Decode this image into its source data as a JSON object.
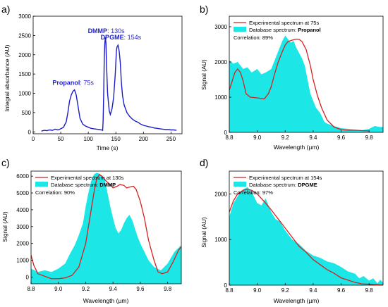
{
  "colors": {
    "panel_a_line": "#1c1cc8",
    "peak_label": "#1f1fd0",
    "experimental": "#d81f1f",
    "database_fill": "#1ce6e6",
    "axis": "#000000"
  },
  "chart_data": [
    {
      "panel_label": "a)",
      "type": "line",
      "title": "",
      "xlabel": "Time (s)",
      "ylabel": "Integral absorbance (AU)",
      "xlim": [
        0,
        270
      ],
      "ylim": [
        -50,
        3000
      ],
      "xticks": [
        "0",
        "50",
        "100",
        "150",
        "200",
        "250"
      ],
      "yticks": [
        "0",
        "500",
        "1000",
        "1500",
        "2000",
        "2500",
        "3000"
      ],
      "series": [
        {
          "x": [
            15,
            20,
            25,
            30,
            35,
            40,
            45,
            50,
            55,
            60,
            63,
            66,
            69,
            72,
            75,
            78,
            81,
            85,
            90,
            95,
            100,
            105,
            110,
            115,
            120,
            124,
            126,
            127,
            128,
            129,
            130,
            131,
            132,
            133,
            135,
            138,
            140,
            143,
            146,
            149,
            151,
            152,
            154,
            156,
            158,
            160,
            162,
            165,
            170,
            175,
            180,
            185,
            190,
            195,
            200,
            205,
            210,
            215,
            220,
            225,
            230,
            235,
            240,
            245,
            250,
            255,
            260
          ],
          "y": [
            20,
            40,
            30,
            50,
            40,
            70,
            50,
            80,
            120,
            260,
            500,
            800,
            950,
            1050,
            1090,
            960,
            700,
            350,
            200,
            150,
            120,
            90,
            80,
            70,
            60,
            50,
            40,
            300,
            1000,
            1900,
            2300,
            2450,
            2300,
            1800,
            1000,
            550,
            450,
            600,
            900,
            1500,
            2100,
            2200,
            2250,
            2100,
            1800,
            1300,
            950,
            700,
            500,
            400,
            330,
            280,
            250,
            200,
            170,
            150,
            130,
            120,
            100,
            90,
            80,
            70,
            60,
            60,
            50,
            50,
            40
          ]
        }
      ],
      "annotations": [
        {
          "name": "Propanol",
          "time_label": ": 75s",
          "x": 75,
          "y": 1090
        },
        {
          "name": "DMMP",
          "time_label": ": 130s",
          "x": 130,
          "y": 2450
        },
        {
          "name": "DPGME",
          "time_label": ": 154s",
          "x": 154,
          "y": 2250
        }
      ]
    },
    {
      "panel_label": "b)",
      "type": "area",
      "title": "",
      "xlabel": "Wavelength (µm)",
      "ylabel": "Signal (AU)",
      "xlim": [
        8.8,
        9.9
      ],
      "ylim": [
        0,
        3300
      ],
      "xticks": [
        "8.8",
        "9.0",
        "9.2",
        "9.4",
        "9.6",
        "9.8"
      ],
      "yticks": [
        "0",
        "1000",
        "2000",
        "3000"
      ],
      "legend_placement": "top-left",
      "legend": {
        "experimental": "Experimental spectrum at 75s",
        "database_prefix": "Database spectrum: ",
        "database_name": "Propanol"
      },
      "correlation": "Correlation: 89%",
      "series": [
        {
          "name": "Experimental spectrum at 75s",
          "x": [
            8.8,
            8.82,
            8.84,
            8.86,
            8.88,
            8.9,
            8.92,
            8.95,
            9.0,
            9.05,
            9.08,
            9.1,
            9.12,
            9.15,
            9.18,
            9.2,
            9.22,
            9.25,
            9.28,
            9.3,
            9.32,
            9.35,
            9.38,
            9.4,
            9.43,
            9.46,
            9.5,
            9.55,
            9.6,
            9.65,
            9.7,
            9.75,
            9.8
          ],
          "y": [
            1200,
            1450,
            1700,
            1800,
            1700,
            1450,
            1100,
            1000,
            980,
            950,
            1100,
            1300,
            1600,
            2000,
            2300,
            2480,
            2580,
            2620,
            2650,
            2640,
            2580,
            2350,
            1900,
            1500,
            1050,
            700,
            350,
            150,
            80,
            60,
            60,
            50,
            40
          ]
        },
        {
          "name": "Database spectrum: Propanol",
          "x": [
            8.8,
            8.83,
            8.86,
            8.9,
            8.93,
            8.96,
            9.0,
            9.03,
            9.06,
            9.1,
            9.13,
            9.16,
            9.18,
            9.2,
            9.22,
            9.24,
            9.26,
            9.28,
            9.3,
            9.32,
            9.34,
            9.36,
            9.38,
            9.4,
            9.42,
            9.45,
            9.48,
            9.5,
            9.55,
            9.6,
            9.65,
            9.7,
            9.75,
            9.8,
            9.84,
            9.88,
            9.9
          ],
          "y": [
            2050,
            1950,
            2000,
            1800,
            1850,
            1700,
            1800,
            1650,
            1700,
            1800,
            2100,
            2400,
            2600,
            2750,
            2650,
            2550,
            2600,
            2400,
            2250,
            2100,
            1900,
            1500,
            1100,
            900,
            700,
            550,
            300,
            250,
            180,
            120,
            100,
            80,
            60,
            100,
            180,
            150,
            160
          ]
        }
      ]
    },
    {
      "panel_label": "c)",
      "type": "area",
      "title": "",
      "xlabel": "Wavelength (µm)",
      "ylabel": "Signal (AU)",
      "xlim": [
        8.8,
        9.9
      ],
      "ylim": [
        -400,
        6300
      ],
      "xticks": [
        "8.8",
        "9.0",
        "9.2",
        "9.4",
        "9.6",
        "9.8"
      ],
      "yticks": [
        "0",
        "1000",
        "2000",
        "3000",
        "4000",
        "5000",
        "6000"
      ],
      "legend_placement": "top-left",
      "legend": {
        "experimental": "Experimental spectrum at 130s",
        "database_prefix": "Database spectrum: ",
        "database_name": "DMMP"
      },
      "correlation": "Correlation: 90%",
      "series": [
        {
          "name": "Experimental spectrum at 130s",
          "x": [
            8.8,
            8.82,
            8.85,
            8.9,
            8.95,
            9.0,
            9.05,
            9.1,
            9.15,
            9.2,
            9.23,
            9.26,
            9.28,
            9.3,
            9.32,
            9.35,
            9.38,
            9.4,
            9.43,
            9.45,
            9.48,
            9.5,
            9.52,
            9.55,
            9.57,
            9.6,
            9.63,
            9.66,
            9.7,
            9.73,
            9.76,
            9.8,
            9.84,
            9.88,
            9.9
          ],
          "y": [
            1300,
            700,
            200,
            50,
            -100,
            -100,
            -50,
            100,
            600,
            2000,
            3500,
            5000,
            5800,
            6100,
            6000,
            5700,
            5500,
            5300,
            5400,
            5500,
            5450,
            5300,
            5350,
            5400,
            5200,
            4500,
            3500,
            2200,
            1000,
            300,
            200,
            300,
            900,
            1600,
            1800
          ]
        },
        {
          "name": "Database spectrum: DMMP",
          "x": [
            8.8,
            8.85,
            8.9,
            8.95,
            9.0,
            9.05,
            9.08,
            9.12,
            9.15,
            9.18,
            9.2,
            9.22,
            9.24,
            9.26,
            9.28,
            9.3,
            9.32,
            9.34,
            9.36,
            9.38,
            9.4,
            9.42,
            9.44,
            9.46,
            9.48,
            9.5,
            9.52,
            9.54,
            9.56,
            9.58,
            9.6,
            9.63,
            9.66,
            9.7,
            9.75,
            9.8,
            9.85,
            9.9
          ],
          "y": [
            500,
            300,
            400,
            300,
            500,
            800,
            1300,
            1900,
            2500,
            3200,
            4200,
            5000,
            5700,
            6100,
            6200,
            6150,
            6000,
            5800,
            5000,
            4200,
            3500,
            2900,
            2600,
            2800,
            3200,
            3500,
            3700,
            3400,
            2900,
            2400,
            2000,
            1500,
            1000,
            600,
            400,
            800,
            1500,
            1900
          ]
        }
      ]
    },
    {
      "panel_label": "d)",
      "type": "area",
      "title": "",
      "xlabel": "Wavelength (µm)",
      "ylabel": "Signal (AU)",
      "xlim": [
        8.8,
        9.9
      ],
      "ylim": [
        0,
        2500
      ],
      "xticks": [
        "8.8",
        "9.0",
        "9.2",
        "9.4",
        "9.6",
        "9.8"
      ],
      "yticks": [
        "0",
        "1000",
        "2000"
      ],
      "legend_placement": "top-left",
      "legend": {
        "experimental": "Experimental spectrum at 154s",
        "database_prefix": "Database spectrum: ",
        "database_name": "DPGME"
      },
      "correlation": "Correlation: 97%",
      "series": [
        {
          "name": "Experimental spectrum at 154s",
          "x": [
            8.8,
            8.83,
            8.86,
            8.9,
            8.93,
            8.96,
            9.0,
            9.03,
            9.06,
            9.1,
            9.15,
            9.2,
            9.25,
            9.3,
            9.35,
            9.4,
            9.45,
            9.5,
            9.55,
            9.6,
            9.65,
            9.7,
            9.75,
            9.8,
            9.85,
            9.9
          ],
          "y": [
            1600,
            1850,
            2000,
            2080,
            2100,
            2080,
            2000,
            1900,
            1800,
            1650,
            1450,
            1250,
            1050,
            850,
            720,
            560,
            450,
            340,
            260,
            160,
            110,
            60,
            30,
            20,
            10,
            0
          ]
        },
        {
          "name": "Database spectrum: DPGME",
          "x": [
            8.8,
            8.83,
            8.86,
            8.88,
            8.9,
            8.93,
            8.96,
            9.0,
            9.03,
            9.06,
            9.1,
            9.13,
            9.16,
            9.2,
            9.25,
            9.3,
            9.35,
            9.4,
            9.45,
            9.5,
            9.55,
            9.6,
            9.65,
            9.7,
            9.73,
            9.76,
            9.8,
            9.83,
            9.86,
            9.88,
            9.9
          ],
          "y": [
            1500,
            1800,
            1950,
            2050,
            2100,
            2150,
            2050,
            1800,
            1750,
            1900,
            1600,
            1450,
            1400,
            1200,
            1000,
            900,
            750,
            650,
            600,
            520,
            480,
            400,
            300,
            250,
            150,
            200,
            100,
            150,
            40,
            120,
            60
          ]
        }
      ]
    }
  ]
}
